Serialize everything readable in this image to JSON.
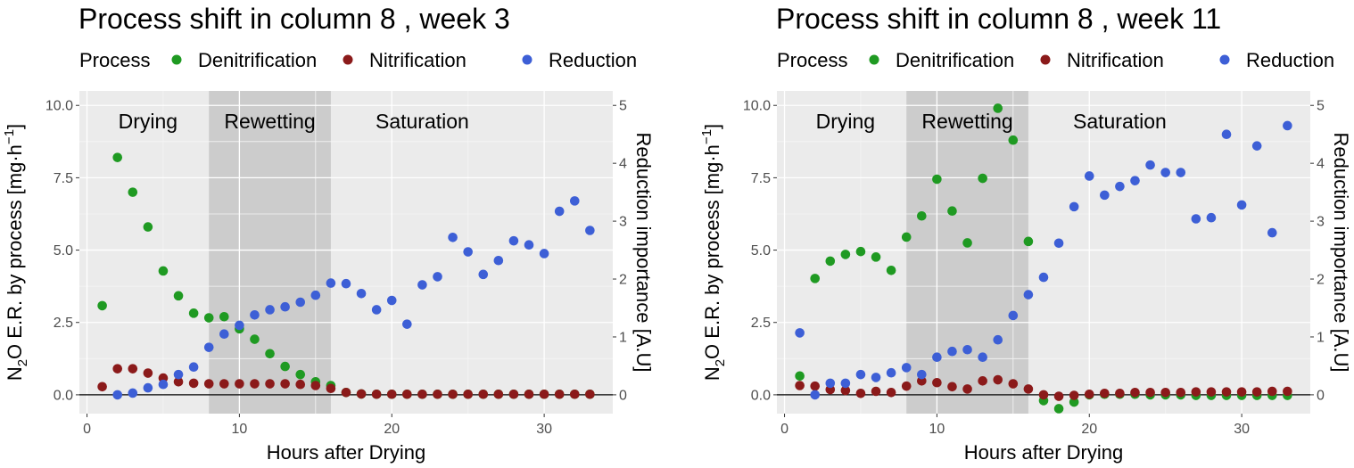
{
  "chart_data": [
    {
      "type": "scatter",
      "title": "Process shift in column 8 , week 3",
      "legend_title": "Process",
      "legend_position": "top-left",
      "xlabel": "Hours after Drying",
      "ylabel_prefix": "N",
      "ylabel_sub": "2",
      "ylabel_main": "O E.R. by process [mg",
      "ylabel_dot": "·",
      "ylabel_h": "h",
      "ylabel_exp": "−1",
      "ylabel_close": "]",
      "y2label": "Reduction importance [A.U]",
      "xlim": [
        -0.5,
        34.5
      ],
      "ylim": [
        -0.65,
        10.5
      ],
      "y2lim": [
        -0.325,
        5.25
      ],
      "x_ticks": [
        0,
        10,
        20,
        30
      ],
      "x_tick_labels": [
        "0",
        "10",
        "20",
        "30"
      ],
      "y_ticks": [
        0,
        2.5,
        5,
        7.5,
        10
      ],
      "y_tick_labels": [
        "0.0",
        "2.5",
        "5.0",
        "7.5",
        "10.0"
      ],
      "y2_ticks": [
        0,
        1,
        2,
        3,
        4,
        5
      ],
      "y2_tick_labels": [
        "0",
        "1",
        "2",
        "3",
        "4",
        "5"
      ],
      "grid": true,
      "shaded_region": [
        8,
        16
      ],
      "phases": [
        {
          "label": "Drying",
          "x": 4
        },
        {
          "label": "Rewetting",
          "x": 12
        },
        {
          "label": "Saturation",
          "x": 22
        }
      ],
      "series": [
        {
          "name": "Denitrification",
          "color": "#1f9a22",
          "axis": "left",
          "x": [
            1,
            2,
            3,
            4,
            5,
            6,
            7,
            8,
            9,
            10,
            11,
            12,
            13,
            14,
            15,
            16,
            17,
            18,
            19,
            20,
            21,
            22,
            23,
            24,
            25,
            26,
            27,
            28,
            29,
            30,
            31,
            32,
            33
          ],
          "y": [
            3.08,
            8.2,
            7.0,
            5.8,
            4.28,
            3.42,
            2.82,
            2.66,
            2.7,
            2.28,
            1.92,
            1.42,
            0.98,
            0.7,
            0.45,
            0.32,
            0.08,
            0.03,
            0.02,
            0.02,
            0.02,
            0.02,
            0.02,
            0.02,
            0.02,
            0.02,
            0.02,
            0.02,
            0.02,
            0.02,
            0.02,
            0.02,
            0.02
          ]
        },
        {
          "name": "Nitrification",
          "color": "#8b1a1a",
          "axis": "left",
          "x": [
            1,
            2,
            3,
            4,
            5,
            6,
            7,
            8,
            9,
            10,
            11,
            12,
            13,
            14,
            15,
            16,
            17,
            18,
            19,
            20,
            21,
            22,
            23,
            24,
            25,
            26,
            27,
            28,
            29,
            30,
            31,
            32,
            33
          ],
          "y": [
            0.28,
            0.9,
            0.9,
            0.75,
            0.58,
            0.45,
            0.4,
            0.38,
            0.38,
            0.38,
            0.38,
            0.38,
            0.38,
            0.36,
            0.32,
            0.22,
            0.08,
            0.03,
            0.02,
            0.02,
            0.02,
            0.02,
            0.02,
            0.02,
            0.02,
            0.02,
            0.02,
            0.02,
            0.02,
            0.02,
            0.02,
            0.02,
            0.02
          ]
        },
        {
          "name": "Reduction",
          "color": "#3d5fd6",
          "axis": "right",
          "x": [
            2,
            3,
            4,
            5,
            6,
            7,
            8,
            9,
            10,
            11,
            12,
            13,
            14,
            15,
            16,
            17,
            18,
            19,
            20,
            21,
            22,
            23,
            24,
            25,
            26,
            27,
            28,
            29,
            30,
            31,
            32,
            33
          ],
          "y": [
            0.0,
            0.03,
            0.12,
            0.18,
            0.35,
            0.48,
            0.82,
            1.05,
            1.2,
            1.38,
            1.47,
            1.52,
            1.6,
            1.72,
            1.93,
            1.92,
            1.75,
            1.47,
            1.63,
            1.22,
            1.9,
            2.04,
            2.72,
            2.47,
            2.08,
            2.32,
            2.66,
            2.59,
            2.44,
            3.17,
            3.35,
            2.84
          ]
        }
      ]
    },
    {
      "type": "scatter",
      "title": "Process shift in column 8 , week 11",
      "legend_title": "Process",
      "legend_position": "top-left",
      "xlabel": "Hours after Drying",
      "ylabel_prefix": "N",
      "ylabel_sub": "2",
      "ylabel_main": "O E.R. by process [mg",
      "ylabel_dot": "·",
      "ylabel_h": "h",
      "ylabel_exp": "−1",
      "ylabel_close": "]",
      "y2label": "Reduction importance [A.U]",
      "xlim": [
        -0.5,
        34.5
      ],
      "ylim": [
        -0.65,
        10.5
      ],
      "y2lim": [
        -0.325,
        5.25
      ],
      "x_ticks": [
        0,
        10,
        20,
        30
      ],
      "x_tick_labels": [
        "0",
        "10",
        "20",
        "30"
      ],
      "y_ticks": [
        0,
        2.5,
        5,
        7.5,
        10
      ],
      "y_tick_labels": [
        "0.0",
        "2.5",
        "5.0",
        "7.5",
        "10.0"
      ],
      "y2_ticks": [
        0,
        1,
        2,
        3,
        4,
        5
      ],
      "y2_tick_labels": [
        "0",
        "1",
        "2",
        "3",
        "4",
        "5"
      ],
      "grid": true,
      "shaded_region": [
        8,
        16
      ],
      "phases": [
        {
          "label": "Drying",
          "x": 4
        },
        {
          "label": "Rewetting",
          "x": 12
        },
        {
          "label": "Saturation",
          "x": 22
        }
      ],
      "series": [
        {
          "name": "Denitrification",
          "color": "#1f9a22",
          "axis": "left",
          "x": [
            1,
            2,
            3,
            4,
            5,
            6,
            7,
            8,
            9,
            10,
            11,
            12,
            13,
            14,
            15,
            16,
            17,
            18,
            19,
            20,
            21,
            22,
            23,
            24,
            25,
            26,
            27,
            28,
            29,
            30,
            31,
            32,
            33
          ],
          "y": [
            0.65,
            4.02,
            4.62,
            4.85,
            4.95,
            4.76,
            4.3,
            5.45,
            6.18,
            7.45,
            6.35,
            5.25,
            7.48,
            9.9,
            8.8,
            5.3,
            -0.2,
            -0.48,
            -0.25,
            0.0,
            0.02,
            0.02,
            0.02,
            0.0,
            0.0,
            0.0,
            -0.02,
            -0.02,
            -0.02,
            -0.02,
            -0.02,
            -0.02,
            -0.02
          ]
        },
        {
          "name": "Nitrification",
          "color": "#8b1a1a",
          "axis": "left",
          "x": [
            1,
            2,
            3,
            4,
            5,
            6,
            7,
            8,
            9,
            10,
            11,
            12,
            13,
            14,
            15,
            16,
            17,
            18,
            19,
            20,
            21,
            22,
            23,
            24,
            25,
            26,
            27,
            28,
            29,
            30,
            31,
            32,
            33
          ],
          "y": [
            0.32,
            0.3,
            0.18,
            0.15,
            0.05,
            0.12,
            0.08,
            0.3,
            0.48,
            0.42,
            0.28,
            0.2,
            0.48,
            0.52,
            0.38,
            0.2,
            0.0,
            -0.05,
            -0.02,
            0.02,
            0.05,
            0.05,
            0.08,
            0.08,
            0.08,
            0.08,
            0.1,
            0.1,
            0.1,
            0.1,
            0.1,
            0.12,
            0.12
          ]
        },
        {
          "name": "Reduction",
          "color": "#3d5fd6",
          "axis": "right",
          "x": [
            1,
            2,
            3,
            4,
            5,
            6,
            7,
            8,
            9,
            10,
            11,
            12,
            13,
            14,
            15,
            16,
            17,
            18,
            19,
            20,
            21,
            22,
            23,
            24,
            25,
            26,
            27,
            28,
            29,
            30,
            31,
            32,
            33
          ],
          "y": [
            1.07,
            0.0,
            0.2,
            0.2,
            0.35,
            0.3,
            0.38,
            0.47,
            0.35,
            0.65,
            0.75,
            0.78,
            0.65,
            0.95,
            1.37,
            1.73,
            2.03,
            2.62,
            3.25,
            3.78,
            3.45,
            3.6,
            3.7,
            3.97,
            3.84,
            3.84,
            3.04,
            3.06,
            4.5,
            3.28,
            4.3,
            2.8,
            4.65
          ]
        }
      ]
    }
  ]
}
